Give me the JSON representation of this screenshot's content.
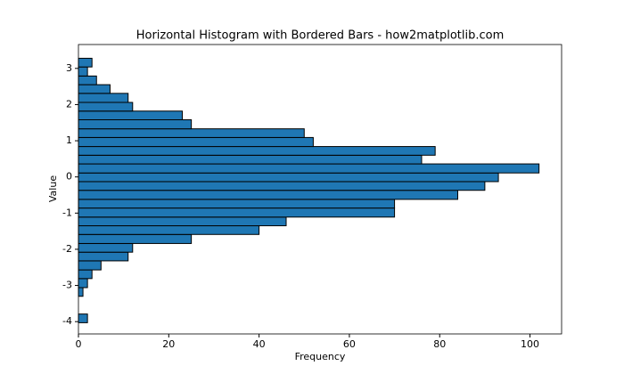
{
  "chart_data": {
    "type": "histogram",
    "orientation": "horizontal",
    "title": "Horizontal Histogram with Bordered Bars - how2matplotlib.com",
    "x_label": "Frequency",
    "y_label": "Value",
    "bins": [
      -4.03,
      -3.79,
      -3.54,
      -3.3,
      -3.06,
      -2.81,
      -2.57,
      -2.32,
      -2.08,
      -1.84,
      -1.59,
      -1.35,
      -1.11,
      -0.86,
      -0.62,
      -0.37,
      -0.13,
      0.11,
      0.36,
      0.6,
      0.84,
      1.09,
      1.33,
      1.58,
      1.82,
      2.06,
      2.31,
      2.55,
      2.79,
      3.04,
      3.28
    ],
    "values": [
      2,
      0,
      0,
      1,
      2,
      3,
      5,
      11,
      12,
      25,
      40,
      46,
      70,
      70,
      84,
      90,
      93,
      102,
      76,
      79,
      52,
      50,
      25,
      23,
      12,
      11,
      7,
      4,
      2,
      3
    ],
    "color": "#1f77b4",
    "edgecolor": "#000000",
    "xlim": [
      0,
      107
    ],
    "xticks": [
      0,
      20,
      40,
      60,
      80,
      100
    ],
    "ylim": [
      -4.34,
      3.66
    ],
    "yticks": [
      -4,
      -3,
      -2,
      -1,
      0,
      1,
      2,
      3
    ],
    "grid": false
  }
}
